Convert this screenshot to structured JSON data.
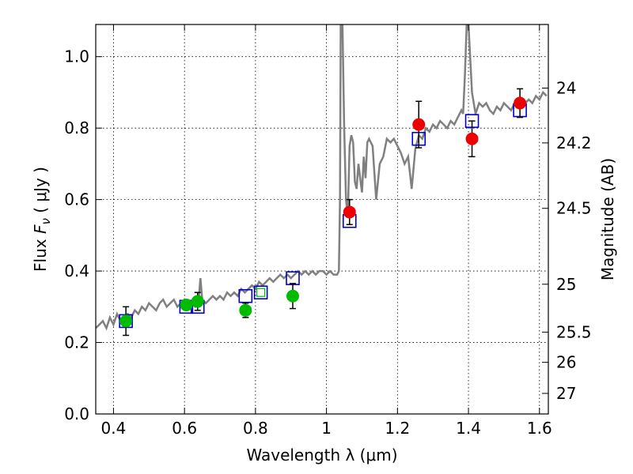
{
  "chart_data": {
    "type": "scatter",
    "xlabel": "Wavelength  λ (μm)",
    "ylabel": "Flux  F_ν  ( μJy )",
    "ylabel_right": "Magnitude (AB)",
    "xlim": [
      0.35,
      1.625
    ],
    "ylim": [
      0.0,
      1.09
    ],
    "grid": true,
    "x_ticks": [
      {
        "value": 0.4,
        "label": "0.4"
      },
      {
        "value": 0.6,
        "label": "0.6"
      },
      {
        "value": 0.8,
        "label": "0.8"
      },
      {
        "value": 1.0,
        "label": "1"
      },
      {
        "value": 1.2,
        "label": "1.2"
      },
      {
        "value": 1.4,
        "label": "1.4"
      },
      {
        "value": 1.6,
        "label": "1.6"
      }
    ],
    "y_ticks": [
      {
        "value": 0.0,
        "label": "0.0"
      },
      {
        "value": 0.2,
        "label": "0.2"
      },
      {
        "value": 0.4,
        "label": "0.4"
      },
      {
        "value": 0.6,
        "label": "0.6"
      },
      {
        "value": 0.8,
        "label": "0.8"
      },
      {
        "value": 1.0,
        "label": "1.0"
      }
    ],
    "right_ticks": [
      {
        "label": "24",
        "mag": 24.0
      },
      {
        "label": "24.2",
        "mag": 24.2
      },
      {
        "label": "24.5",
        "mag": 24.5
      },
      {
        "label": "25",
        "mag": 25.0
      },
      {
        "label": "25.5",
        "mag": 25.5
      },
      {
        "label": "26",
        "mag": 26.0
      },
      {
        "label": "27",
        "mag": 27.0
      }
    ],
    "colors": {
      "spectrum": "#808080",
      "green_points": "#00bb00",
      "red_points": "#ee0000",
      "model_squares": "#0000cc",
      "error_bars": "#000000"
    },
    "spectrum": {
      "x": [
        0.35,
        0.36,
        0.37,
        0.38,
        0.39,
        0.4,
        0.41,
        0.42,
        0.43,
        0.44,
        0.45,
        0.46,
        0.47,
        0.48,
        0.49,
        0.5,
        0.51,
        0.52,
        0.53,
        0.54,
        0.55,
        0.56,
        0.57,
        0.58,
        0.59,
        0.6,
        0.61,
        0.62,
        0.63,
        0.635,
        0.64,
        0.645,
        0.65,
        0.66,
        0.67,
        0.68,
        0.69,
        0.7,
        0.71,
        0.72,
        0.73,
        0.74,
        0.75,
        0.76,
        0.77,
        0.78,
        0.79,
        0.8,
        0.81,
        0.82,
        0.83,
        0.84,
        0.85,
        0.86,
        0.87,
        0.88,
        0.89,
        0.9,
        0.91,
        0.92,
        0.93,
        0.94,
        0.95,
        0.96,
        0.97,
        0.98,
        0.99,
        1.0,
        1.01,
        1.02,
        1.03,
        1.035,
        1.038,
        1.04,
        1.045,
        1.05,
        1.055,
        1.06,
        1.065,
        1.07,
        1.075,
        1.08,
        1.085,
        1.09,
        1.095,
        1.1,
        1.105,
        1.11,
        1.115,
        1.12,
        1.13,
        1.14,
        1.15,
        1.16,
        1.17,
        1.18,
        1.19,
        1.2,
        1.21,
        1.22,
        1.23,
        1.24,
        1.25,
        1.26,
        1.27,
        1.28,
        1.29,
        1.3,
        1.31,
        1.32,
        1.33,
        1.34,
        1.35,
        1.36,
        1.37,
        1.38,
        1.385,
        1.39,
        1.395,
        1.4,
        1.41,
        1.42,
        1.43,
        1.44,
        1.45,
        1.46,
        1.47,
        1.48,
        1.49,
        1.5,
        1.51,
        1.52,
        1.53,
        1.54,
        1.55,
        1.56,
        1.57,
        1.58,
        1.59,
        1.6,
        1.61,
        1.62
      ],
      "y": [
        0.24,
        0.25,
        0.26,
        0.24,
        0.27,
        0.25,
        0.28,
        0.26,
        0.27,
        0.28,
        0.27,
        0.29,
        0.28,
        0.3,
        0.29,
        0.31,
        0.3,
        0.29,
        0.31,
        0.32,
        0.3,
        0.31,
        0.32,
        0.3,
        0.31,
        0.32,
        0.3,
        0.31,
        0.3,
        0.31,
        0.32,
        0.38,
        0.32,
        0.31,
        0.32,
        0.33,
        0.32,
        0.33,
        0.32,
        0.34,
        0.33,
        0.34,
        0.33,
        0.35,
        0.34,
        0.35,
        0.36,
        0.35,
        0.37,
        0.36,
        0.37,
        0.38,
        0.37,
        0.38,
        0.39,
        0.38,
        0.39,
        0.38,
        0.39,
        0.4,
        0.39,
        0.4,
        0.39,
        0.4,
        0.39,
        0.4,
        0.4,
        0.39,
        0.4,
        0.39,
        0.39,
        0.4,
        0.6,
        1.09,
        1.09,
        0.8,
        0.6,
        0.55,
        0.75,
        0.78,
        0.76,
        0.65,
        0.63,
        0.7,
        0.66,
        0.62,
        0.72,
        0.66,
        0.76,
        0.77,
        0.75,
        0.6,
        0.7,
        0.72,
        0.77,
        0.76,
        0.77,
        0.75,
        0.73,
        0.7,
        0.72,
        0.63,
        0.74,
        0.78,
        0.77,
        0.8,
        0.79,
        0.81,
        0.8,
        0.82,
        0.81,
        0.8,
        0.82,
        0.81,
        0.83,
        0.85,
        0.84,
        0.95,
        1.09,
        1.09,
        0.9,
        0.84,
        0.87,
        0.86,
        0.87,
        0.85,
        0.84,
        0.86,
        0.85,
        0.87,
        0.86,
        0.85,
        0.87,
        0.86,
        0.88,
        0.87,
        0.88,
        0.87,
        0.89,
        0.88,
        0.9,
        0.89
      ]
    },
    "series": [
      {
        "marker": "square",
        "x": [
          0.435,
          0.605,
          0.637,
          0.772,
          0.815,
          0.905,
          1.065,
          1.26,
          1.41,
          1.545
        ],
        "y": [
          0.26,
          0.3,
          0.3,
          0.33,
          0.34,
          0.38,
          0.54,
          0.77,
          0.82,
          0.85
        ]
      },
      {
        "marker": "circle",
        "x": [
          0.435,
          0.605,
          0.637,
          0.772,
          0.905
        ],
        "y": [
          0.26,
          0.305,
          0.315,
          0.29,
          0.33
        ],
        "yerr": [
          0.04,
          0.0,
          0.025,
          0.02,
          0.035
        ]
      },
      {
        "marker": "circle",
        "x": [
          1.065,
          1.26,
          1.41,
          1.545
        ],
        "y": [
          0.565,
          0.81,
          0.77,
          0.87
        ],
        "yerr": [
          0.035,
          0.065,
          0.05,
          0.04
        ]
      }
    ]
  }
}
